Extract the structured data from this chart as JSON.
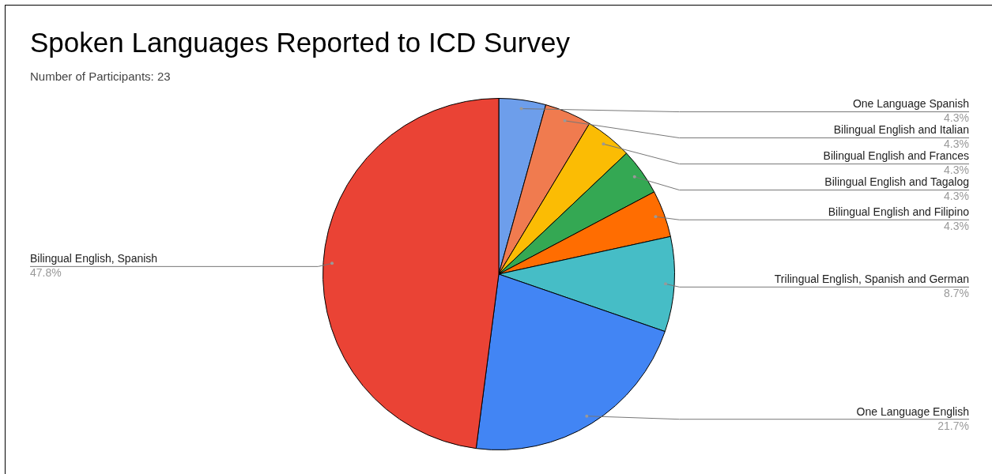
{
  "chart_data": {
    "type": "pie",
    "title": "Spoken Languages Reported to ICD Survey",
    "subtitle": "Number of Participants: 23",
    "categories": [
      "One Language Spanish",
      "Bilingual English and Italian",
      "Bilingual English and Frances",
      "Bilingual English and Tagalog",
      "Bilingual English and Filipino",
      "Trilingual English, Spanish and German",
      "One Language English",
      "Bilingual English, Spanish"
    ],
    "values": [
      4.3,
      4.3,
      4.3,
      4.3,
      4.3,
      8.7,
      21.7,
      47.8
    ],
    "colors": [
      "#6d9eeb",
      "#f07b4f",
      "#fbbc04",
      "#34a853",
      "#ff6d01",
      "#46bdc6",
      "#4285f4",
      "#ea4335"
    ],
    "value_labels": [
      "4.3%",
      "4.3%",
      "4.3%",
      "4.3%",
      "4.3%",
      "8.7%",
      "21.7%",
      "47.8%"
    ],
    "legend": false
  }
}
